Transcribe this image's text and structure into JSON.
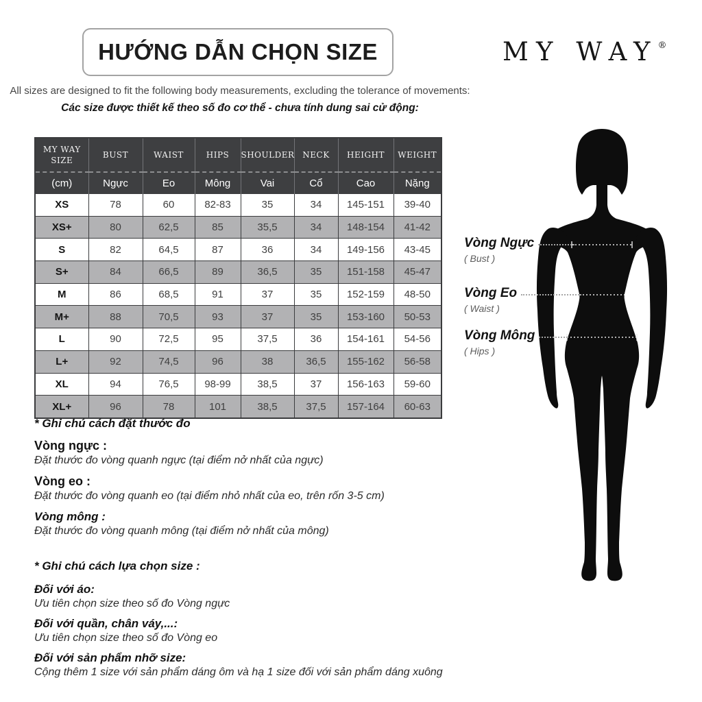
{
  "header": {
    "title": "HƯỚNG DẪN CHỌN SIZE",
    "brand": "MY WAY",
    "brand_mark": "®",
    "subtitle_en": "All sizes are designed to fit the following body measurements, excluding the tolerance of movements:",
    "subtitle_vi": "Các size được thiết kế theo số đo cơ thể - chưa tính dung sai cử động:"
  },
  "size_table": {
    "unit_note": "(cm)",
    "columns": [
      {
        "key": "size",
        "en": "MY WAY SIZE",
        "vi": "(cm)"
      },
      {
        "key": "bust",
        "en": "BUST",
        "vi": "Ngực"
      },
      {
        "key": "waist",
        "en": "WAIST",
        "vi": "Eo"
      },
      {
        "key": "hips",
        "en": "HIPS",
        "vi": "Mông"
      },
      {
        "key": "shoulder",
        "en": "SHOULDER",
        "vi": "Vai"
      },
      {
        "key": "neck",
        "en": "NECK",
        "vi": "Cổ"
      },
      {
        "key": "height",
        "en": "HEIGHT",
        "vi": "Cao"
      },
      {
        "key": "weight",
        "en": "WEIGHT",
        "vi": "Nặng"
      }
    ],
    "rows": [
      {
        "size": "XS",
        "values": [
          "78",
          "60",
          "82-83",
          "35",
          "34",
          "145-151",
          "39-40"
        ]
      },
      {
        "size": "XS+",
        "values": [
          "80",
          "62,5",
          "85",
          "35,5",
          "34",
          "148-154",
          "41-42"
        ]
      },
      {
        "size": "S",
        "values": [
          "82",
          "64,5",
          "87",
          "36",
          "34",
          "149-156",
          "43-45"
        ]
      },
      {
        "size": "S+",
        "values": [
          "84",
          "66,5",
          "89",
          "36,5",
          "35",
          "151-158",
          "45-47"
        ]
      },
      {
        "size": "M",
        "values": [
          "86",
          "68,5",
          "91",
          "37",
          "35",
          "152-159",
          "48-50"
        ]
      },
      {
        "size": "M+",
        "values": [
          "88",
          "70,5",
          "93",
          "37",
          "35",
          "153-160",
          "50-53"
        ]
      },
      {
        "size": "L",
        "values": [
          "90",
          "72,5",
          "95",
          "37,5",
          "36",
          "154-161",
          "54-56"
        ]
      },
      {
        "size": "L+",
        "values": [
          "92",
          "74,5",
          "96",
          "38",
          "36,5",
          "155-162",
          "56-58"
        ]
      },
      {
        "size": "XL",
        "values": [
          "94",
          "76,5",
          "98-99",
          "38,5",
          "37",
          "156-163",
          "59-60"
        ]
      },
      {
        "size": "XL+",
        "values": [
          "96",
          "78",
          "101",
          "38,5",
          "37,5",
          "157-164",
          "60-63"
        ]
      }
    ]
  },
  "figure": {
    "labels": [
      {
        "vi": "Vòng Ngực",
        "en": "( Bust )"
      },
      {
        "vi": "Vòng Eo",
        "en": "( Waist )"
      },
      {
        "vi": "Vòng Mông",
        "en": "( Hips )"
      }
    ]
  },
  "notes_measure": {
    "title": "* Ghi chú cách đặt thước đo",
    "items": [
      {
        "label": "Vòng ngực :",
        "text": "Đặt thước đo vòng quanh ngực (tại điểm nở nhất của ngực)"
      },
      {
        "label": "Vòng eo :",
        "text": "Đặt thước đo vòng quanh eo (tại điểm nhỏ nhất của eo, trên rốn 3-5 cm)"
      },
      {
        "label": "Vòng mông :",
        "text": "Đặt thước đo vòng quanh mông (tại điểm nở nhất của mông)"
      }
    ]
  },
  "notes_choose": {
    "title": "* Ghi chú cách lựa chọn size :",
    "items": [
      {
        "label": "Đối với áo:",
        "text": "Ưu tiên chọn size theo số đo Vòng ngực"
      },
      {
        "label": "Đối với quần, chân váy,...:",
        "text": "Ưu tiên chọn size theo số đo Vòng eo"
      },
      {
        "label": "Đối với sản phẩm nhỡ size:",
        "text": "Cộng thêm 1 size với sản phẩm dáng ôm và hạ 1 size đối với sản phẩm dáng xuông"
      }
    ]
  },
  "colors": {
    "header_bg": "#3e3f41",
    "shaded_row": "#b2b2b4",
    "figure_black": "#0d0d0d",
    "accent_text": "#111111"
  }
}
